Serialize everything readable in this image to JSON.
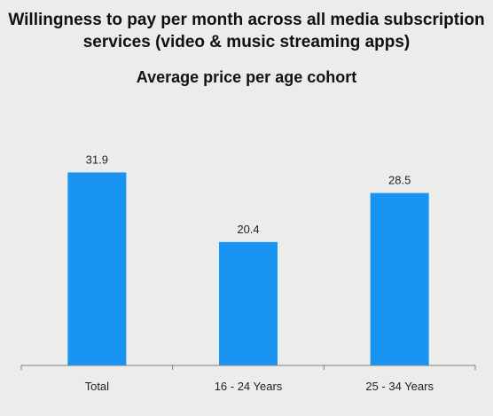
{
  "chart_data": {
    "type": "bar",
    "title": "Willingness to pay per month across all media subscription services (video & music streaming apps)",
    "subtitle": "Average price per age cohort",
    "categories": [
      "Total",
      "16 - 24 Years",
      "25 - 34 Years"
    ],
    "values": [
      31.9,
      20.4,
      28.5
    ],
    "xlabel": "",
    "ylabel": "",
    "ylim": [
      0,
      34.6
    ],
    "grid": false,
    "bar_color": "#1a94f2",
    "axis_color": "#7f7f7f"
  }
}
